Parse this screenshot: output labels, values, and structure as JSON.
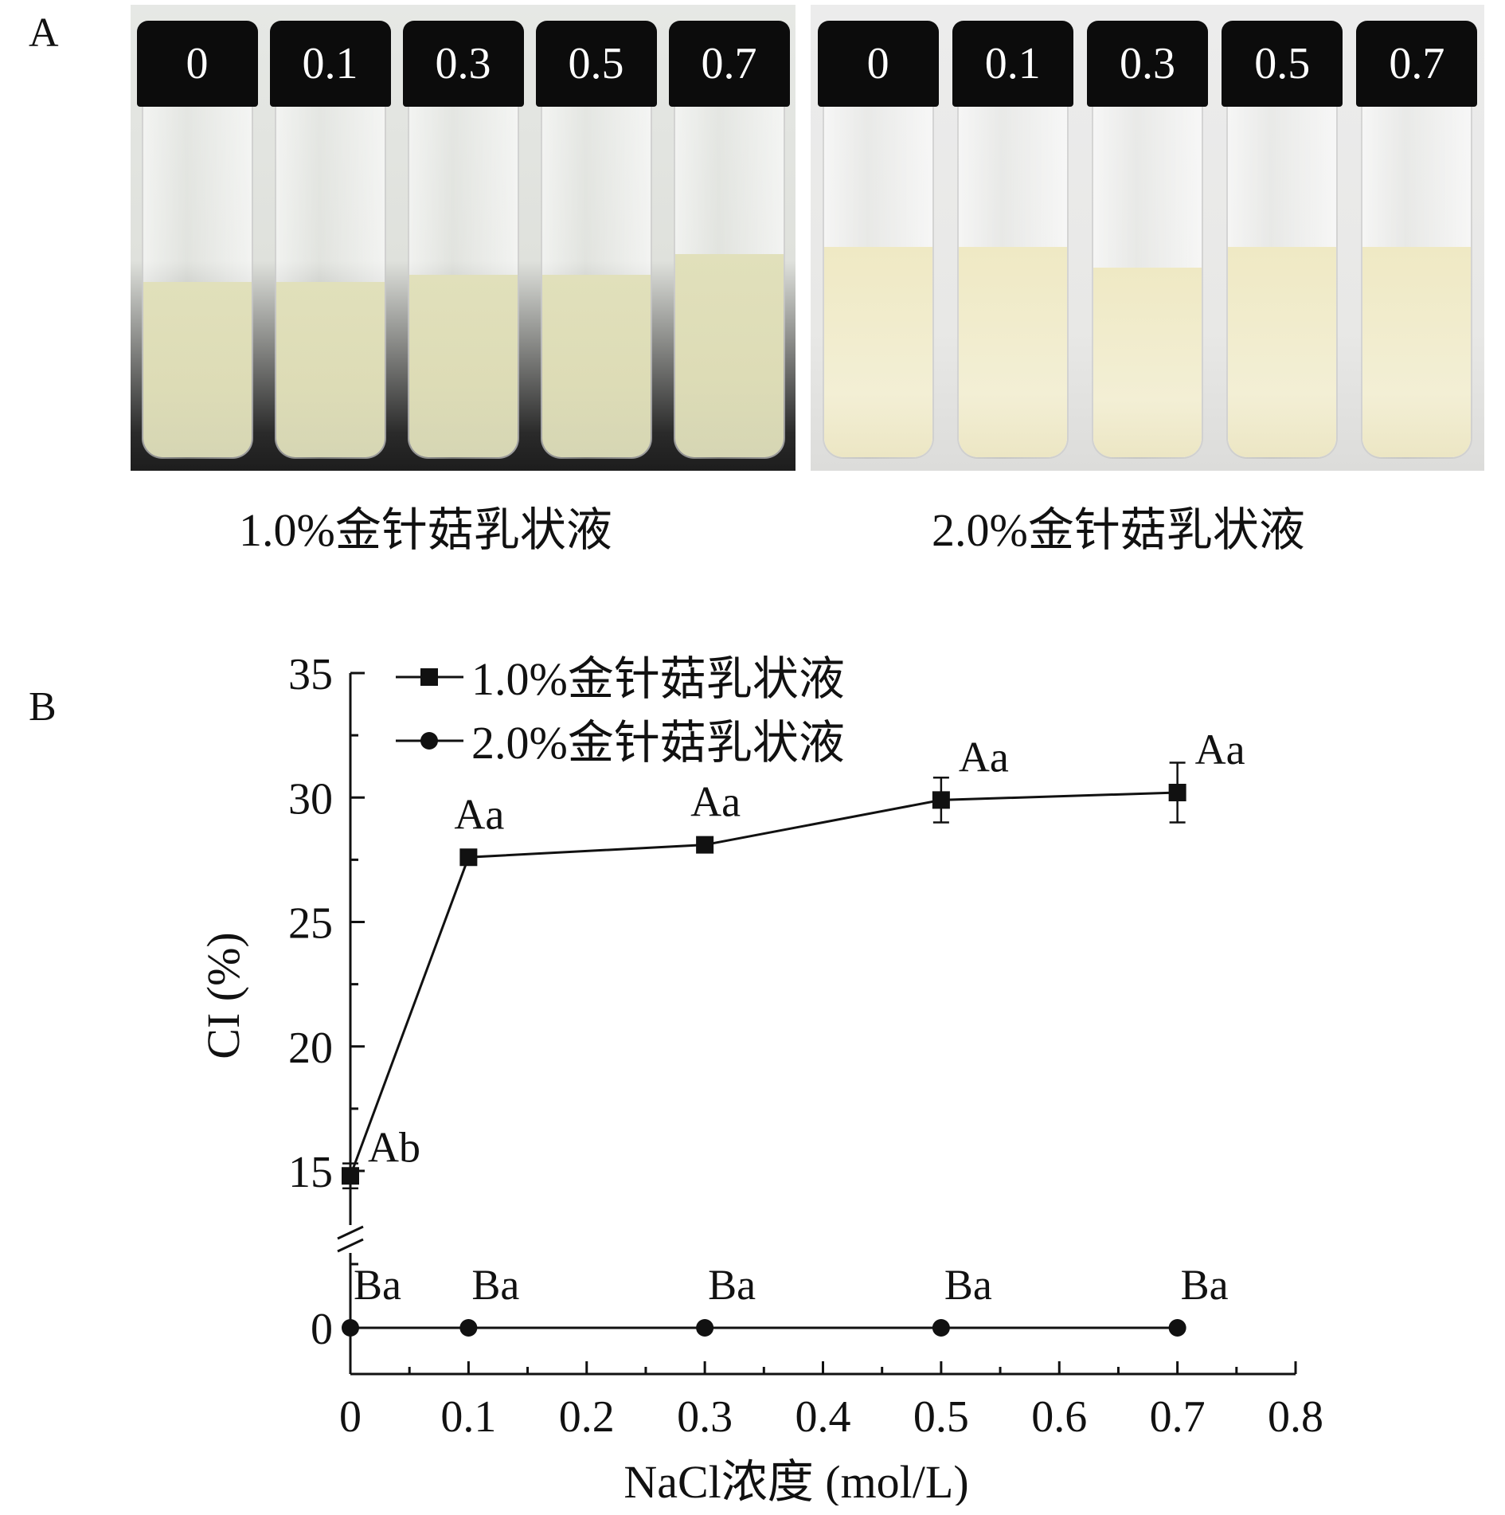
{
  "panel_labels": {
    "a": "A",
    "b": "B"
  },
  "photo": {
    "left": {
      "caption": "1.0%金针菇乳状液",
      "vials": [
        "0",
        "0.1",
        "0.3",
        "0.5",
        "0.7"
      ],
      "liquid_fraction": [
        0.5,
        0.5,
        0.52,
        0.52,
        0.58
      ]
    },
    "right": {
      "caption": "2.0%金针菇乳状液",
      "vials": [
        "0",
        "0.1",
        "0.3",
        "0.5",
        "0.7"
      ],
      "liquid_fraction": [
        0.6,
        0.6,
        0.54,
        0.6,
        0.6
      ]
    }
  },
  "chart_data": {
    "type": "line",
    "xlabel": "NaCl浓度 (mol/L)",
    "ylabel": "CI (%)",
    "xlim": [
      0,
      0.8
    ],
    "x_ticks": [
      "0",
      "0.1",
      "0.2",
      "0.3",
      "0.4",
      "0.5",
      "0.6",
      "0.7",
      "0.8"
    ],
    "y_ticks": [
      "0",
      "15",
      "20",
      "25",
      "30",
      "35"
    ],
    "y_axis_break": true,
    "legend_position": "top-left",
    "grid": false,
    "series": [
      {
        "name": "1.0%金针菇乳状液",
        "marker": "square",
        "x": [
          0,
          0.1,
          0.3,
          0.5,
          0.7
        ],
        "y": [
          14.8,
          27.6,
          28.1,
          29.9,
          30.2
        ],
        "error": [
          0.5,
          0.15,
          0.15,
          0.9,
          1.2
        ],
        "labels": [
          "Ab",
          "Aa",
          "Aa",
          "Aa",
          "Aa"
        ]
      },
      {
        "name": "2.0%金针菇乳状液",
        "marker": "circle",
        "x": [
          0,
          0.1,
          0.3,
          0.5,
          0.7
        ],
        "y": [
          0,
          0,
          0,
          0,
          0
        ],
        "labels": [
          "Ba",
          "Ba",
          "Ba",
          "Ba",
          "Ba"
        ]
      }
    ]
  }
}
